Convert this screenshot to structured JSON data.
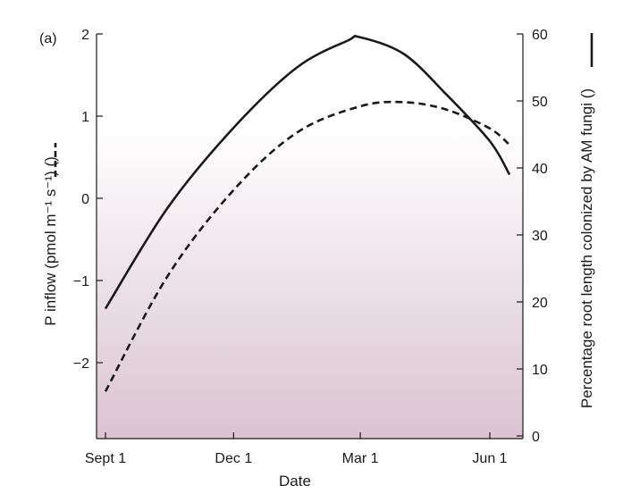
{
  "chart_data": {
    "type": "line",
    "panel_label": "(a)",
    "xlabel": "Date",
    "x_ticks": [
      "Sept 1",
      "Dec 1",
      "Mar 1",
      "Jun 1"
    ],
    "ylabel_left": "P inflow (pmol m⁻¹ s⁻¹) (",
    "ylabel_left_close": ")",
    "ylabel_right": "Percentage root length colonized by AM fungi (",
    "ylabel_right_close": ")",
    "y_left_ticks": [
      "2",
      "1",
      "0",
      "−1",
      "−2"
    ],
    "y_left_range": [
      -3,
      2
    ],
    "y_right_ticks": [
      "60",
      "50",
      "40",
      "30",
      "20",
      "10",
      "0"
    ],
    "y_right_range": [
      0,
      60
    ],
    "series": [
      {
        "axis": "right",
        "style": "solid",
        "x": [
          "Sept 1",
          "Oct 15",
          "Dec 1",
          "Jan 15",
          "Feb 20",
          "Mar 1",
          "Apr 1",
          "May 1",
          "Jun 1",
          "Jun 15"
        ],
        "values": [
          19,
          34,
          46,
          55,
          59,
          59.5,
          57,
          51,
          44,
          39
        ]
      },
      {
        "axis": "left",
        "style": "dashed",
        "x": [
          "Sept 1",
          "Oct 15",
          "Dec 1",
          "Jan 15",
          "Mar 1",
          "Apr 1",
          "May 1",
          "Jun 1",
          "Jun 15"
        ],
        "values": [
          -2.35,
          -0.95,
          0.1,
          0.8,
          1.12,
          1.17,
          1.08,
          0.85,
          0.65
        ]
      }
    ],
    "background": {
      "gradient_top": "#ffffff",
      "gradient_bottom": "#dac3d0"
    },
    "grid": false
  }
}
